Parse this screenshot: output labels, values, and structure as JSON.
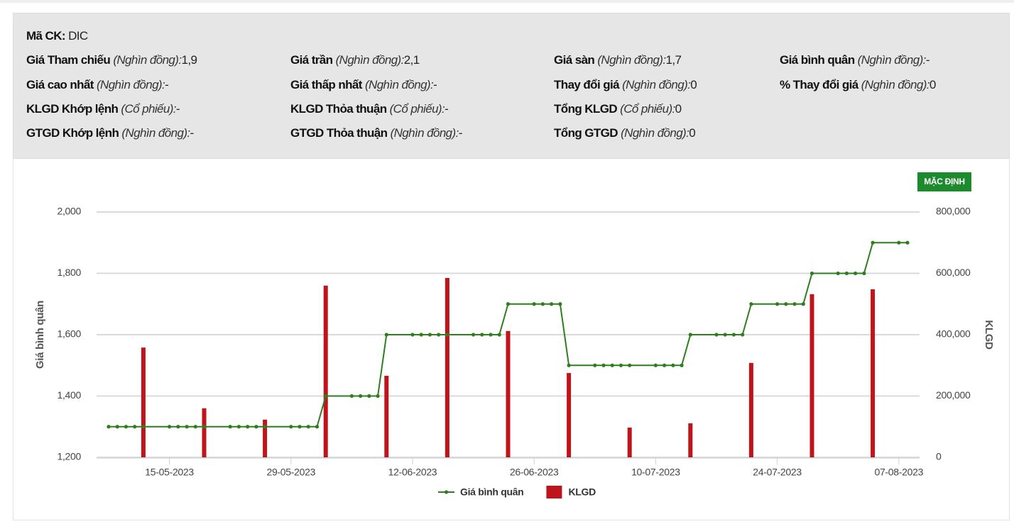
{
  "info": {
    "code_label": "Mã CK:",
    "code": "DIC",
    "rows": [
      [
        {
          "label": "Giá Tham chiếu",
          "unit": "(Nghìn đồng):",
          "value": "1,9"
        },
        {
          "label": "Giá trần",
          "unit": "(Nghìn đồng):",
          "value": "2,1"
        },
        {
          "label": "Giá sàn",
          "unit": "(Nghìn đồng):",
          "value": "1,7"
        },
        {
          "label": "Giá bình quân",
          "unit": "(Nghìn đồng):",
          "value": "-"
        }
      ],
      [
        {
          "label": "Giá cao nhất",
          "unit": "(Nghìn đồng):",
          "value": "-"
        },
        {
          "label": "Giá thấp nhất",
          "unit": "(Nghìn đồng):",
          "value": "-"
        },
        {
          "label": "Thay đổi giá",
          "unit": "(Nghìn đồng):",
          "value": "0"
        },
        {
          "label": "% Thay đổi giá",
          "unit": "(Nghìn đồng):",
          "value": "0"
        }
      ],
      [
        {
          "label": "KLGD Khớp lệnh",
          "unit": "(Cổ phiếu):",
          "value": "-"
        },
        {
          "label": "KLGD Thỏa thuận",
          "unit": "(Cổ phiếu):",
          "value": "-"
        },
        {
          "label": "Tổng KLGD",
          "unit": "(Cổ phiếu):",
          "value": "0"
        }
      ],
      [
        {
          "label": "GTGD Khớp lệnh",
          "unit": "(Nghìn đồng):",
          "value": "-"
        },
        {
          "label": "GTGD Thỏa thuận",
          "unit": "(Nghìn đồng):",
          "value": "-"
        },
        {
          "label": "Tổng GTGD",
          "unit": "(Nghìn đồng):",
          "value": "0"
        }
      ]
    ],
    "button": "MẶC ĐỊNH"
  },
  "chart_data": {
    "type": "bar-line",
    "y_label": "Giá bình quân",
    "y2_label": "KLGD",
    "x": [
      "08-05-2023",
      "09-05-2023",
      "10-05-2023",
      "11-05-2023",
      "12-05-2023",
      "15-05-2023",
      "16-05-2023",
      "17-05-2023",
      "18-05-2023",
      "19-05-2023",
      "22-05-2023",
      "23-05-2023",
      "24-05-2023",
      "25-05-2023",
      "26-05-2023",
      "29-05-2023",
      "30-05-2023",
      "31-05-2023",
      "01-06-2023",
      "02-06-2023",
      "05-06-2023",
      "06-06-2023",
      "07-06-2023",
      "08-06-2023",
      "09-06-2023",
      "12-06-2023",
      "13-06-2023",
      "14-06-2023",
      "15-06-2023",
      "16-06-2023",
      "19-06-2023",
      "20-06-2023",
      "21-06-2023",
      "22-06-2023",
      "23-06-2023",
      "26-06-2023",
      "27-06-2023",
      "28-06-2023",
      "29-06-2023",
      "30-06-2023",
      "03-07-2023",
      "04-07-2023",
      "05-07-2023",
      "06-07-2023",
      "07-07-2023",
      "10-07-2023",
      "11-07-2023",
      "12-07-2023",
      "13-07-2023",
      "14-07-2023",
      "17-07-2023",
      "18-07-2023",
      "19-07-2023",
      "20-07-2023",
      "21-07-2023",
      "24-07-2023",
      "25-07-2023",
      "26-07-2023",
      "27-07-2023",
      "28-07-2023",
      "31-07-2023",
      "01-08-2023",
      "02-08-2023",
      "03-08-2023",
      "04-08-2023",
      "07-08-2023",
      "08-08-2023"
    ],
    "series": [
      {
        "name": "Giá bình quân",
        "kind": "line",
        "color": "#2e7d1e",
        "values": [
          1300,
          1300,
          1300,
          1300,
          1300,
          1300,
          1300,
          1300,
          1300,
          1300,
          1300,
          1300,
          1300,
          1300,
          1300,
          1300,
          1300,
          1300,
          1300,
          1400,
          1400,
          1400,
          1400,
          1400,
          1600,
          1600,
          1600,
          1600,
          1600,
          1600,
          1600,
          1600,
          1600,
          1600,
          1700,
          1700,
          1700,
          1700,
          1700,
          1500,
          1500,
          1500,
          1500,
          1500,
          1500,
          1500,
          1500,
          1500,
          1500,
          1600,
          1600,
          1600,
          1600,
          1600,
          1700,
          1700,
          1700,
          1700,
          1700,
          1800,
          1800,
          1800,
          1800,
          1800,
          1900,
          1900,
          1900
        ]
      },
      {
        "name": "KLGD",
        "kind": "bar",
        "axis": "y2",
        "color": "#c0141b",
        "values": [
          null,
          null,
          null,
          null,
          358000,
          null,
          null,
          null,
          null,
          160000,
          null,
          null,
          null,
          null,
          123000,
          null,
          null,
          null,
          null,
          560000,
          null,
          null,
          null,
          null,
          266000,
          null,
          null,
          null,
          null,
          585000,
          null,
          null,
          null,
          null,
          412000,
          null,
          null,
          null,
          null,
          275000,
          null,
          null,
          null,
          null,
          97000,
          null,
          null,
          null,
          null,
          111000,
          null,
          null,
          null,
          null,
          308000,
          null,
          null,
          null,
          null,
          532000,
          null,
          null,
          null,
          null,
          548000,
          null,
          null
        ]
      }
    ],
    "xticks": [
      "15-05-2023",
      "29-05-2023",
      "12-06-2023",
      "26-06-2023",
      "10-07-2023",
      "24-07-2023",
      "07-08-2023"
    ],
    "ylim": [
      1200,
      2000
    ],
    "yticks": [
      {
        "value": 1200,
        "label": "1,200"
      },
      {
        "value": 1400,
        "label": "1,400"
      },
      {
        "value": 1600,
        "label": "1,600"
      },
      {
        "value": 1800,
        "label": "1,800"
      },
      {
        "value": 2000,
        "label": "2,000"
      }
    ],
    "y2lim": [
      0,
      800000
    ],
    "y2ticks": [
      0,
      {
        "value": 200000,
        "label": "200,000"
      },
      {
        "value": 400000,
        "label": "400,000"
      },
      {
        "value": 600000,
        "label": "600,000"
      },
      {
        "value": 800000,
        "label": "800,000"
      }
    ],
    "grid": true,
    "legend": "bottom"
  }
}
